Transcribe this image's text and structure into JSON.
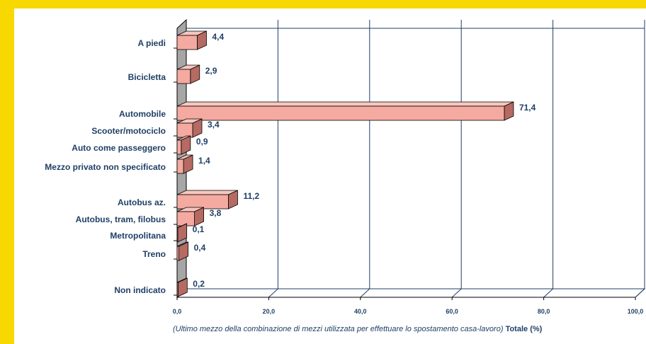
{
  "colors": {
    "border": "#f7d800",
    "bar_front": "#f4aaa0",
    "bar_top": "#f8c6be",
    "bar_side": "#b56a62",
    "wall": "#a6a6a6",
    "grid": "#1f3f66",
    "text": "#1f3f66"
  },
  "chart_data": {
    "type": "bar",
    "orientation": "horizontal",
    "style": "3d",
    "categories": [
      "A piedi",
      "Bicicletta",
      "Automobile",
      "Scooter/motociclo",
      "Auto come passeggero",
      "Mezzo privato non specificato",
      "Autobus az.",
      "Autobus, tram, filobus",
      "Metropolitana",
      "Treno",
      "Non indicato"
    ],
    "values": [
      4.4,
      2.9,
      71.4,
      3.4,
      0.9,
      1.4,
      11.2,
      3.8,
      0.1,
      0.4,
      0.2
    ],
    "value_labels": [
      "4,4",
      "2,9",
      "71,4",
      "3,4",
      "0,9",
      "1,4",
      "11,2",
      "3,8",
      "0,1",
      "0,4",
      "0,2"
    ],
    "xlim": [
      0,
      100
    ],
    "xticks": [
      "0,0",
      "20,0",
      "40,0",
      "60,0",
      "80,0",
      "100,0"
    ],
    "xlabel_italic": "(Ultimo mezzo della combinazione di mezzi utilizzata per effettuare lo spostamento casa-lavoro)",
    "xlabel_bold": "Totale (%)",
    "grid": true,
    "legend": "none"
  }
}
